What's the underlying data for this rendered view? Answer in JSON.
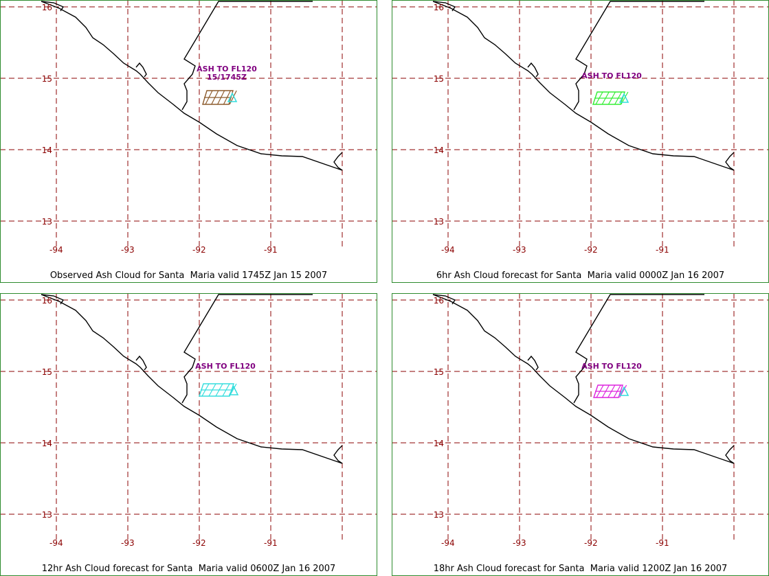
{
  "colors": {
    "grid": "#8b0000",
    "tick_label": "#8b0000",
    "coast": "#000000",
    "annotation": "#800080",
    "frame": "#2c8a2c",
    "ash_observed": "#8b5a2b",
    "ash_6hr": "#33ee33",
    "ash_12hr": "#33dddd",
    "ash_18hr": "#dd22dd",
    "vent_marker": "#33dddd"
  },
  "map": {
    "lon_range": [
      -94,
      -90
    ],
    "lat_range": [
      13,
      16
    ],
    "lon_ticks": [
      "-94",
      "-93",
      "-92",
      "-91"
    ],
    "lat_ticks": [
      "16",
      "15",
      "14",
      "13"
    ]
  },
  "panels": [
    {
      "caption": "Observed Ash Cloud for Santa  Maria valid 1745Z Jan 15 2007",
      "annotation_lines": [
        "ASH TO FL120",
        "15/1745Z"
      ],
      "ash_color_key": "ash_observed"
    },
    {
      "caption": "6hr Ash Cloud forecast for Santa  Maria valid 0000Z Jan 16 2007",
      "annotation_lines": [
        "ASH TO FL120"
      ],
      "ash_color_key": "ash_6hr"
    },
    {
      "caption": "12hr Ash Cloud forecast for Santa  Maria valid 0600Z Jan 16 2007",
      "annotation_lines": [
        "ASH TO FL120"
      ],
      "ash_color_key": "ash_12hr"
    },
    {
      "caption": "18hr Ash Cloud forecast for Santa  Maria valid 1200Z Jan 16 2007",
      "annotation_lines": [
        "ASH TO FL120"
      ],
      "ash_color_key": "ash_18hr"
    }
  ]
}
